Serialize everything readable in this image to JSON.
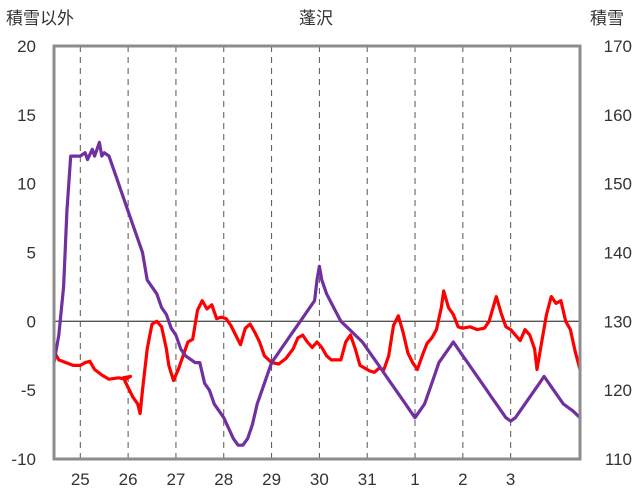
{
  "chart_data": {
    "type": "line",
    "title": "蓬沢",
    "left_axis_label": "積雪以外",
    "right_axis_label": "積雪",
    "left_ylim": [
      -10,
      20
    ],
    "left_ticks": [
      20,
      15,
      10,
      5,
      0,
      -5,
      -10
    ],
    "right_ylim": [
      110,
      170
    ],
    "right_ticks": [
      170,
      160,
      150,
      140,
      130,
      120,
      110
    ],
    "xlim": [
      24.45,
      35.45
    ],
    "categories": [
      "25",
      "26",
      "27",
      "28",
      "29",
      "30",
      "31",
      "1",
      "2",
      "3"
    ],
    "category_positions": [
      25,
      26,
      27,
      28,
      29,
      30,
      31,
      32,
      33,
      34
    ],
    "series": [
      {
        "name": "積雪以外",
        "axis": "left",
        "color": "#ff0000",
        "points": [
          [
            24.45,
            -2.2
          ],
          [
            24.55,
            -2.8
          ],
          [
            24.7,
            -3.0
          ],
          [
            24.85,
            -3.2
          ],
          [
            25.0,
            -3.2
          ],
          [
            25.1,
            -3.0
          ],
          [
            25.2,
            -2.9
          ],
          [
            25.3,
            -3.5
          ],
          [
            25.45,
            -3.9
          ],
          [
            25.6,
            -4.2
          ],
          [
            25.8,
            -4.1
          ],
          [
            25.95,
            -4.2
          ],
          [
            26.05,
            -4.0
          ],
          [
            25.9,
            -4.1
          ],
          [
            26.1,
            -5.5
          ],
          [
            26.2,
            -6.0
          ],
          [
            26.25,
            -6.7
          ],
          [
            26.3,
            -5.0
          ],
          [
            26.4,
            -2.0
          ],
          [
            26.5,
            -0.2
          ],
          [
            26.6,
            0.0
          ],
          [
            26.7,
            -0.4
          ],
          [
            26.8,
            -2.0
          ],
          [
            26.85,
            -3.2
          ],
          [
            26.95,
            -4.3
          ],
          [
            27.05,
            -3.5
          ],
          [
            27.15,
            -2.5
          ],
          [
            27.25,
            -1.5
          ],
          [
            27.35,
            -1.3
          ],
          [
            27.45,
            0.8
          ],
          [
            27.55,
            1.5
          ],
          [
            27.65,
            0.9
          ],
          [
            27.75,
            1.2
          ],
          [
            27.85,
            0.2
          ],
          [
            27.95,
            0.3
          ],
          [
            28.05,
            0.2
          ],
          [
            28.15,
            -0.3
          ],
          [
            28.25,
            -1.0
          ],
          [
            28.35,
            -1.7
          ],
          [
            28.45,
            -0.5
          ],
          [
            28.55,
            -0.2
          ],
          [
            28.65,
            -0.8
          ],
          [
            28.75,
            -1.5
          ],
          [
            28.85,
            -2.5
          ],
          [
            29.0,
            -3.0
          ],
          [
            29.15,
            -3.1
          ],
          [
            29.3,
            -2.7
          ],
          [
            29.45,
            -2.0
          ],
          [
            29.55,
            -1.2
          ],
          [
            29.65,
            -1.0
          ],
          [
            29.75,
            -1.5
          ],
          [
            29.85,
            -1.9
          ],
          [
            29.95,
            -1.5
          ],
          [
            30.05,
            -1.9
          ],
          [
            30.15,
            -2.5
          ],
          [
            30.25,
            -2.8
          ],
          [
            30.35,
            -2.8
          ],
          [
            30.45,
            -2.8
          ],
          [
            30.55,
            -1.5
          ],
          [
            30.65,
            -1.0
          ],
          [
            30.75,
            -2.0
          ],
          [
            30.85,
            -3.2
          ],
          [
            30.95,
            -3.4
          ],
          [
            31.05,
            -3.6
          ],
          [
            31.15,
            -3.7
          ],
          [
            31.25,
            -3.4
          ],
          [
            31.35,
            -3.5
          ],
          [
            31.45,
            -2.5
          ],
          [
            31.55,
            -0.3
          ],
          [
            31.65,
            0.4
          ],
          [
            31.75,
            -0.8
          ],
          [
            31.85,
            -2.3
          ],
          [
            31.95,
            -3.0
          ],
          [
            32.05,
            -3.5
          ],
          [
            32.15,
            -2.5
          ],
          [
            32.25,
            -1.6
          ],
          [
            32.35,
            -1.2
          ],
          [
            32.45,
            -0.6
          ],
          [
            32.55,
            1.0
          ],
          [
            32.6,
            2.2
          ],
          [
            32.7,
            1.0
          ],
          [
            32.8,
            0.5
          ],
          [
            32.9,
            -0.4
          ],
          [
            33.0,
            -0.5
          ],
          [
            33.15,
            -0.4
          ],
          [
            33.3,
            -0.6
          ],
          [
            33.45,
            -0.5
          ],
          [
            33.55,
            0.0
          ],
          [
            33.65,
            1.2
          ],
          [
            33.7,
            1.8
          ],
          [
            33.8,
            0.6
          ],
          [
            33.9,
            -0.4
          ],
          [
            34.0,
            -0.6
          ],
          [
            34.1,
            -1.0
          ],
          [
            34.2,
            -1.4
          ],
          [
            34.3,
            -0.6
          ],
          [
            34.4,
            -1.0
          ],
          [
            34.5,
            -2.0
          ],
          [
            34.55,
            -3.5
          ],
          [
            34.65,
            -1.5
          ],
          [
            34.75,
            0.5
          ],
          [
            34.85,
            1.8
          ],
          [
            34.95,
            1.3
          ],
          [
            35.05,
            1.5
          ],
          [
            35.15,
            0.0
          ],
          [
            35.25,
            -0.6
          ],
          [
            35.35,
            -2.2
          ],
          [
            35.45,
            -3.5
          ]
        ]
      },
      {
        "name": "積雪",
        "axis": "right",
        "color": "#7030a0",
        "points": [
          [
            24.45,
            124.0
          ],
          [
            24.55,
            128.0
          ],
          [
            24.65,
            135.0
          ],
          [
            24.72,
            146.0
          ],
          [
            24.8,
            154.0
          ],
          [
            25.0,
            154.0
          ],
          [
            25.1,
            154.5
          ],
          [
            25.15,
            153.5
          ],
          [
            25.25,
            155.0
          ],
          [
            25.3,
            154.0
          ],
          [
            25.35,
            155.0
          ],
          [
            25.4,
            156.0
          ],
          [
            25.45,
            154.0
          ],
          [
            25.5,
            154.5
          ],
          [
            25.6,
            154.0
          ],
          [
            25.7,
            152.0
          ],
          [
            25.8,
            150.0
          ],
          [
            25.9,
            148.0
          ],
          [
            26.0,
            146.0
          ],
          [
            26.1,
            144.0
          ],
          [
            26.2,
            142.0
          ],
          [
            26.3,
            140.0
          ],
          [
            26.4,
            136.0
          ],
          [
            26.5,
            135.0
          ],
          [
            26.6,
            134.0
          ],
          [
            26.7,
            132.0
          ],
          [
            26.8,
            131.0
          ],
          [
            26.9,
            129.0
          ],
          [
            27.0,
            128.0
          ],
          [
            27.1,
            126.0
          ],
          [
            27.2,
            125.0
          ],
          [
            27.3,
            124.5
          ],
          [
            27.4,
            124.0
          ],
          [
            27.5,
            124.0
          ],
          [
            27.6,
            121.0
          ],
          [
            27.7,
            120.0
          ],
          [
            27.8,
            118.0
          ],
          [
            27.9,
            117.0
          ],
          [
            28.0,
            116.0
          ],
          [
            28.1,
            114.5
          ],
          [
            28.2,
            113.0
          ],
          [
            28.25,
            112.5
          ],
          [
            28.3,
            112.0
          ],
          [
            28.4,
            112.0
          ],
          [
            28.5,
            113.0
          ],
          [
            28.6,
            115.0
          ],
          [
            28.7,
            118.0
          ],
          [
            28.8,
            120.0
          ],
          [
            28.9,
            122.0
          ],
          [
            29.0,
            124.0
          ],
          [
            29.1,
            125.0
          ],
          [
            29.2,
            126.0
          ],
          [
            29.3,
            127.0
          ],
          [
            29.4,
            128.0
          ],
          [
            29.5,
            129.0
          ],
          [
            29.6,
            130.0
          ],
          [
            29.7,
            131.0
          ],
          [
            29.8,
            132.0
          ],
          [
            29.9,
            133.0
          ],
          [
            29.95,
            136.0
          ],
          [
            30.0,
            138.0
          ],
          [
            30.05,
            136.0
          ],
          [
            30.15,
            134.0
          ],
          [
            30.3,
            132.0
          ],
          [
            30.45,
            130.0
          ],
          [
            30.6,
            129.0
          ],
          [
            30.75,
            128.0
          ],
          [
            30.9,
            127.0
          ],
          [
            31.0,
            126.0
          ],
          [
            31.1,
            125.0
          ],
          [
            31.2,
            124.0
          ],
          [
            31.3,
            123.0
          ],
          [
            31.4,
            122.0
          ],
          [
            31.5,
            121.0
          ],
          [
            31.6,
            120.0
          ],
          [
            31.7,
            119.0
          ],
          [
            31.8,
            118.0
          ],
          [
            31.9,
            117.0
          ],
          [
            32.0,
            116.0
          ],
          [
            32.1,
            117.0
          ],
          [
            32.2,
            118.0
          ],
          [
            32.3,
            120.0
          ],
          [
            32.4,
            122.0
          ],
          [
            32.5,
            124.0
          ],
          [
            32.6,
            125.0
          ],
          [
            32.7,
            126.0
          ],
          [
            32.8,
            127.0
          ],
          [
            32.9,
            126.0
          ],
          [
            33.0,
            125.0
          ],
          [
            33.1,
            124.0
          ],
          [
            33.2,
            123.0
          ],
          [
            33.3,
            122.0
          ],
          [
            33.4,
            121.0
          ],
          [
            33.5,
            120.0
          ],
          [
            33.6,
            119.0
          ],
          [
            33.7,
            118.0
          ],
          [
            33.8,
            117.0
          ],
          [
            33.9,
            116.0
          ],
          [
            34.0,
            115.5
          ],
          [
            34.1,
            116.0
          ],
          [
            34.2,
            117.0
          ],
          [
            34.3,
            118.0
          ],
          [
            34.4,
            119.0
          ],
          [
            34.5,
            120.0
          ],
          [
            34.6,
            121.0
          ],
          [
            34.7,
            122.0
          ],
          [
            34.8,
            121.0
          ],
          [
            34.9,
            120.0
          ],
          [
            35.0,
            119.0
          ],
          [
            35.1,
            118.0
          ],
          [
            35.2,
            117.5
          ],
          [
            35.3,
            117.0
          ],
          [
            35.45,
            116.0
          ]
        ]
      }
    ],
    "grid": true
  }
}
